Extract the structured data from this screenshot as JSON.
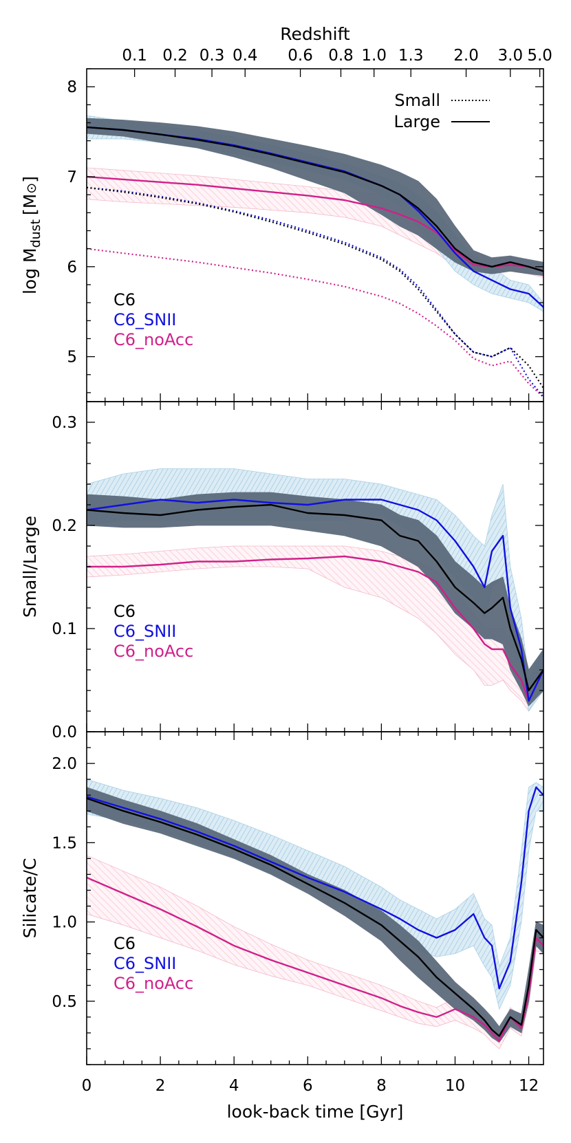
{
  "figure": {
    "top_axis_title": "Redshift",
    "x_axis_title": "look-back time [Gyr]"
  },
  "colors": {
    "C6": "#000000",
    "C6_SNII": "#1010e0",
    "C6_noAcc": "#d0208a",
    "band_C6": "#5c6b7c",
    "band_SNII": "#a9cfe4",
    "band_noAcc": "#f4b8c8"
  },
  "chart_data": [
    {
      "type": "line",
      "panel": "top",
      "ylabel_main": "log M",
      "ylabel_sub": "dust",
      "ylabel_unit": "[M",
      "ylabel_close": "]",
      "xlim": [
        0,
        12.4
      ],
      "ylim": [
        4.5,
        8.2
      ],
      "yticks": [
        5,
        6,
        7,
        8
      ],
      "xticks": [
        0,
        2,
        4,
        6,
        8,
        10,
        12
      ],
      "redshift_ticks": [
        {
          "label": "0.1",
          "t": 1.3
        },
        {
          "label": "0.2",
          "t": 2.4
        },
        {
          "label": "0.3",
          "t": 3.4
        },
        {
          "label": "0.4",
          "t": 4.3
        },
        {
          "label": "0.6",
          "t": 5.8
        },
        {
          "label": "0.8",
          "t": 6.9
        },
        {
          "label": "1.0",
          "t": 7.8
        },
        {
          "label": "1.3",
          "t": 8.8
        },
        {
          "label": "2.0",
          "t": 10.3
        },
        {
          "label": "3.0",
          "t": 11.5
        },
        {
          "label": "5.0",
          "t": 12.3
        }
      ],
      "style_legend": [
        {
          "label": "Small",
          "dash": "dotted"
        },
        {
          "label": "Large",
          "dash": "solid"
        }
      ],
      "run_legend": [
        "C6",
        "C6_SNII",
        "C6_noAcc"
      ],
      "x": [
        0,
        1,
        2,
        3,
        4,
        5,
        6,
        7,
        8,
        8.5,
        9,
        9.5,
        10,
        10.5,
        11,
        11.5,
        12,
        12.4
      ],
      "series": [
        {
          "name": "C6",
          "kind": "large",
          "values": [
            7.55,
            7.52,
            7.47,
            7.41,
            7.34,
            7.25,
            7.15,
            7.05,
            6.9,
            6.8,
            6.65,
            6.45,
            6.2,
            6.05,
            6.0,
            6.05,
            6.0,
            5.95
          ]
        },
        {
          "name": "C6_SNII",
          "kind": "large",
          "values": [
            7.55,
            7.52,
            7.47,
            7.42,
            7.35,
            7.26,
            7.16,
            7.06,
            6.9,
            6.8,
            6.62,
            6.4,
            6.15,
            5.95,
            5.85,
            5.75,
            5.7,
            5.55
          ]
        },
        {
          "name": "C6_noAcc",
          "kind": "large",
          "values": [
            7.0,
            6.97,
            6.94,
            6.91,
            6.87,
            6.83,
            6.79,
            6.74,
            6.65,
            6.58,
            6.5,
            6.38,
            6.18,
            6.02,
            6.0,
            6.02,
            6.0,
            5.95
          ]
        },
        {
          "name": "C6",
          "kind": "small",
          "values": [
            6.88,
            6.83,
            6.77,
            6.7,
            6.61,
            6.5,
            6.38,
            6.25,
            6.08,
            5.95,
            5.75,
            5.5,
            5.25,
            5.05,
            5.0,
            5.1,
            4.9,
            4.65
          ]
        },
        {
          "name": "C6_SNII",
          "kind": "small",
          "values": [
            6.88,
            6.84,
            6.78,
            6.71,
            6.62,
            6.52,
            6.4,
            6.27,
            6.1,
            5.97,
            5.78,
            5.52,
            5.25,
            5.05,
            5.0,
            5.1,
            4.75,
            4.55
          ]
        },
        {
          "name": "C6_noAcc",
          "kind": "small",
          "values": [
            6.2,
            6.15,
            6.1,
            6.05,
            5.99,
            5.93,
            5.86,
            5.78,
            5.67,
            5.59,
            5.48,
            5.34,
            5.18,
            4.98,
            4.9,
            4.95,
            4.7,
            4.55
          ]
        }
      ],
      "bands": [
        {
          "name": "C6",
          "lower": [
            7.48,
            7.45,
            7.38,
            7.32,
            7.22,
            7.1,
            6.96,
            6.82,
            6.58,
            6.45,
            6.35,
            6.2,
            6.05,
            5.95,
            5.92,
            5.95,
            5.92,
            5.9
          ],
          "upper": [
            7.65,
            7.63,
            7.6,
            7.56,
            7.5,
            7.42,
            7.34,
            7.25,
            7.13,
            7.05,
            6.95,
            6.75,
            6.45,
            6.18,
            6.1,
            6.12,
            6.08,
            6.05
          ]
        },
        {
          "name": "C6_SNII",
          "lower": [
            7.42,
            7.42,
            7.38,
            7.33,
            7.26,
            7.17,
            7.07,
            6.97,
            6.8,
            6.68,
            6.45,
            6.2,
            5.95,
            5.8,
            5.7,
            5.65,
            5.6,
            5.5
          ]
        },
        {
          "name": "C6_noAcc",
          "lower": [
            6.75,
            6.72,
            6.7,
            6.68,
            6.66,
            6.63,
            6.6,
            6.55,
            6.45,
            6.35,
            6.25,
            6.15,
            6.0,
            5.92,
            5.92,
            5.95,
            5.92,
            5.88
          ],
          "upper": [
            7.1,
            7.07,
            7.04,
            7.01,
            6.97,
            6.93,
            6.89,
            6.84,
            6.8,
            6.76,
            6.7,
            6.55,
            6.3,
            6.12,
            6.08,
            6.1,
            6.06,
            6.02
          ]
        }
      ]
    },
    {
      "type": "line",
      "panel": "middle",
      "ylabel": "Small/Large",
      "xlim": [
        0,
        12.4
      ],
      "ylim": [
        0,
        0.32
      ],
      "yticks": [
        "0.0",
        "0.1",
        "0.2",
        "0.3"
      ],
      "run_legend": [
        "C6",
        "C6_SNII",
        "C6_noAcc"
      ],
      "x": [
        0,
        1,
        2,
        3,
        4,
        5,
        6,
        7,
        8,
        8.5,
        9,
        9.5,
        10,
        10.5,
        10.8,
        11,
        11.3,
        11.5,
        11.8,
        12,
        12.4
      ],
      "series": [
        {
          "name": "C6",
          "values": [
            0.215,
            0.212,
            0.21,
            0.215,
            0.218,
            0.22,
            0.212,
            0.21,
            0.205,
            0.19,
            0.185,
            0.165,
            0.14,
            0.125,
            0.115,
            0.12,
            0.13,
            0.1,
            0.07,
            0.04,
            0.06
          ]
        },
        {
          "name": "C6_SNII",
          "values": [
            0.215,
            0.22,
            0.225,
            0.222,
            0.225,
            0.222,
            0.22,
            0.225,
            0.225,
            0.22,
            0.215,
            0.205,
            0.185,
            0.16,
            0.14,
            0.175,
            0.19,
            0.12,
            0.08,
            0.03,
            0.06
          ]
        },
        {
          "name": "C6_noAcc",
          "values": [
            0.16,
            0.16,
            0.162,
            0.165,
            0.165,
            0.167,
            0.168,
            0.17,
            0.165,
            0.16,
            0.155,
            0.145,
            0.12,
            0.1,
            0.085,
            0.08,
            0.08,
            0.065,
            0.05,
            0.03,
            0.06
          ]
        }
      ],
      "bands": [
        {
          "name": "C6",
          "lower": [
            0.2,
            0.198,
            0.198,
            0.2,
            0.2,
            0.2,
            0.195,
            0.19,
            0.18,
            0.17,
            0.16,
            0.14,
            0.115,
            0.1,
            0.09,
            0.09,
            0.085,
            0.06,
            0.04,
            0.025,
            0.04
          ],
          "upper": [
            0.23,
            0.228,
            0.225,
            0.23,
            0.232,
            0.232,
            0.228,
            0.225,
            0.22,
            0.21,
            0.205,
            0.19,
            0.165,
            0.15,
            0.14,
            0.145,
            0.15,
            0.12,
            0.09,
            0.06,
            0.08
          ]
        },
        {
          "name": "C6_SNII",
          "lower": [
            0.2,
            0.205,
            0.205,
            0.205,
            0.205,
            0.205,
            0.205,
            0.205,
            0.21,
            0.2,
            0.19,
            0.17,
            0.15,
            0.13,
            0.11,
            0.14,
            0.15,
            0.09,
            0.06,
            0.02,
            0.04
          ],
          "upper": [
            0.24,
            0.25,
            0.255,
            0.255,
            0.255,
            0.25,
            0.245,
            0.245,
            0.24,
            0.235,
            0.23,
            0.225,
            0.21,
            0.19,
            0.18,
            0.21,
            0.24,
            0.16,
            0.11,
            0.05,
            0.08
          ]
        },
        {
          "name": "C6_noAcc",
          "lower": [
            0.15,
            0.152,
            0.155,
            0.158,
            0.16,
            0.16,
            0.158,
            0.14,
            0.13,
            0.12,
            0.11,
            0.095,
            0.075,
            0.06,
            0.045,
            0.045,
            0.05,
            0.04,
            0.03,
            0.02,
            0.04
          ],
          "upper": [
            0.17,
            0.172,
            0.175,
            0.178,
            0.18,
            0.18,
            0.18,
            0.18,
            0.175,
            0.17,
            0.165,
            0.155,
            0.135,
            0.115,
            0.1,
            0.1,
            0.1,
            0.085,
            0.07,
            0.05,
            0.07
          ]
        }
      ]
    },
    {
      "type": "line",
      "panel": "bottom",
      "ylabel": "Silicate/C",
      "xlim": [
        0,
        12.4
      ],
      "ylim": [
        0.1,
        2.2
      ],
      "yticks": [
        "0.5",
        "1.0",
        "1.5",
        "2.0"
      ],
      "run_legend": [
        "C6",
        "C6_SNII",
        "C6_noAcc"
      ],
      "x": [
        0,
        1,
        2,
        3,
        4,
        5,
        6,
        7,
        8,
        8.5,
        9,
        9.5,
        10,
        10.5,
        10.8,
        11,
        11.2,
        11.5,
        11.8,
        12,
        12.2,
        12.4
      ],
      "series": [
        {
          "name": "C6",
          "values": [
            1.78,
            1.7,
            1.63,
            1.55,
            1.46,
            1.36,
            1.24,
            1.12,
            0.98,
            0.88,
            0.78,
            0.65,
            0.55,
            0.45,
            0.38,
            0.32,
            0.28,
            0.4,
            0.35,
            0.6,
            0.95,
            0.9
          ]
        },
        {
          "name": "C6_SNII",
          "values": [
            1.79,
            1.72,
            1.65,
            1.57,
            1.48,
            1.38,
            1.28,
            1.19,
            1.08,
            1.02,
            0.95,
            0.9,
            0.95,
            1.05,
            0.9,
            0.85,
            0.58,
            0.75,
            1.25,
            1.7,
            1.85,
            1.8
          ]
        },
        {
          "name": "C6_noAcc",
          "values": [
            1.28,
            1.18,
            1.08,
            0.97,
            0.85,
            0.76,
            0.68,
            0.6,
            0.52,
            0.47,
            0.43,
            0.4,
            0.45,
            0.4,
            0.35,
            0.3,
            0.25,
            0.4,
            0.33,
            0.55,
            0.9,
            0.85
          ]
        }
      ],
      "bands": [
        {
          "name": "C6",
          "lower": [
            1.7,
            1.62,
            1.56,
            1.48,
            1.4,
            1.3,
            1.18,
            1.04,
            0.88,
            0.76,
            0.65,
            0.55,
            0.45,
            0.38,
            0.32,
            0.27,
            0.24,
            0.34,
            0.3,
            0.5,
            0.85,
            0.8
          ],
          "upper": [
            1.85,
            1.77,
            1.7,
            1.62,
            1.52,
            1.42,
            1.3,
            1.2,
            1.07,
            0.98,
            0.88,
            0.75,
            0.62,
            0.52,
            0.45,
            0.4,
            0.34,
            0.45,
            0.42,
            0.7,
            1.0,
            0.98
          ]
        },
        {
          "name": "C6_SNII",
          "lower": [
            1.68,
            1.64,
            1.58,
            1.5,
            1.41,
            1.31,
            1.21,
            1.1,
            0.98,
            0.9,
            0.82,
            0.78,
            0.8,
            0.85,
            0.72,
            0.65,
            0.45,
            0.6,
            1.0,
            1.45,
            1.7,
            1.7
          ],
          "upper": [
            1.9,
            1.83,
            1.78,
            1.72,
            1.64,
            1.55,
            1.45,
            1.35,
            1.22,
            1.14,
            1.08,
            1.02,
            1.08,
            1.18,
            1.02,
            0.98,
            0.72,
            0.9,
            1.45,
            1.85,
            1.88,
            1.85
          ]
        },
        {
          "name": "C6_noAcc",
          "lower": [
            1.05,
            0.98,
            0.9,
            0.82,
            0.73,
            0.66,
            0.6,
            0.52,
            0.44,
            0.4,
            0.36,
            0.34,
            0.38,
            0.33,
            0.29,
            0.24,
            0.2,
            0.33,
            0.28,
            0.48,
            0.82,
            0.8
          ],
          "upper": [
            1.42,
            1.32,
            1.22,
            1.1,
            0.97,
            0.86,
            0.76,
            0.68,
            0.6,
            0.55,
            0.5,
            0.46,
            0.52,
            0.48,
            0.42,
            0.36,
            0.3,
            0.46,
            0.4,
            0.62,
            0.98,
            0.92
          ]
        }
      ]
    }
  ]
}
